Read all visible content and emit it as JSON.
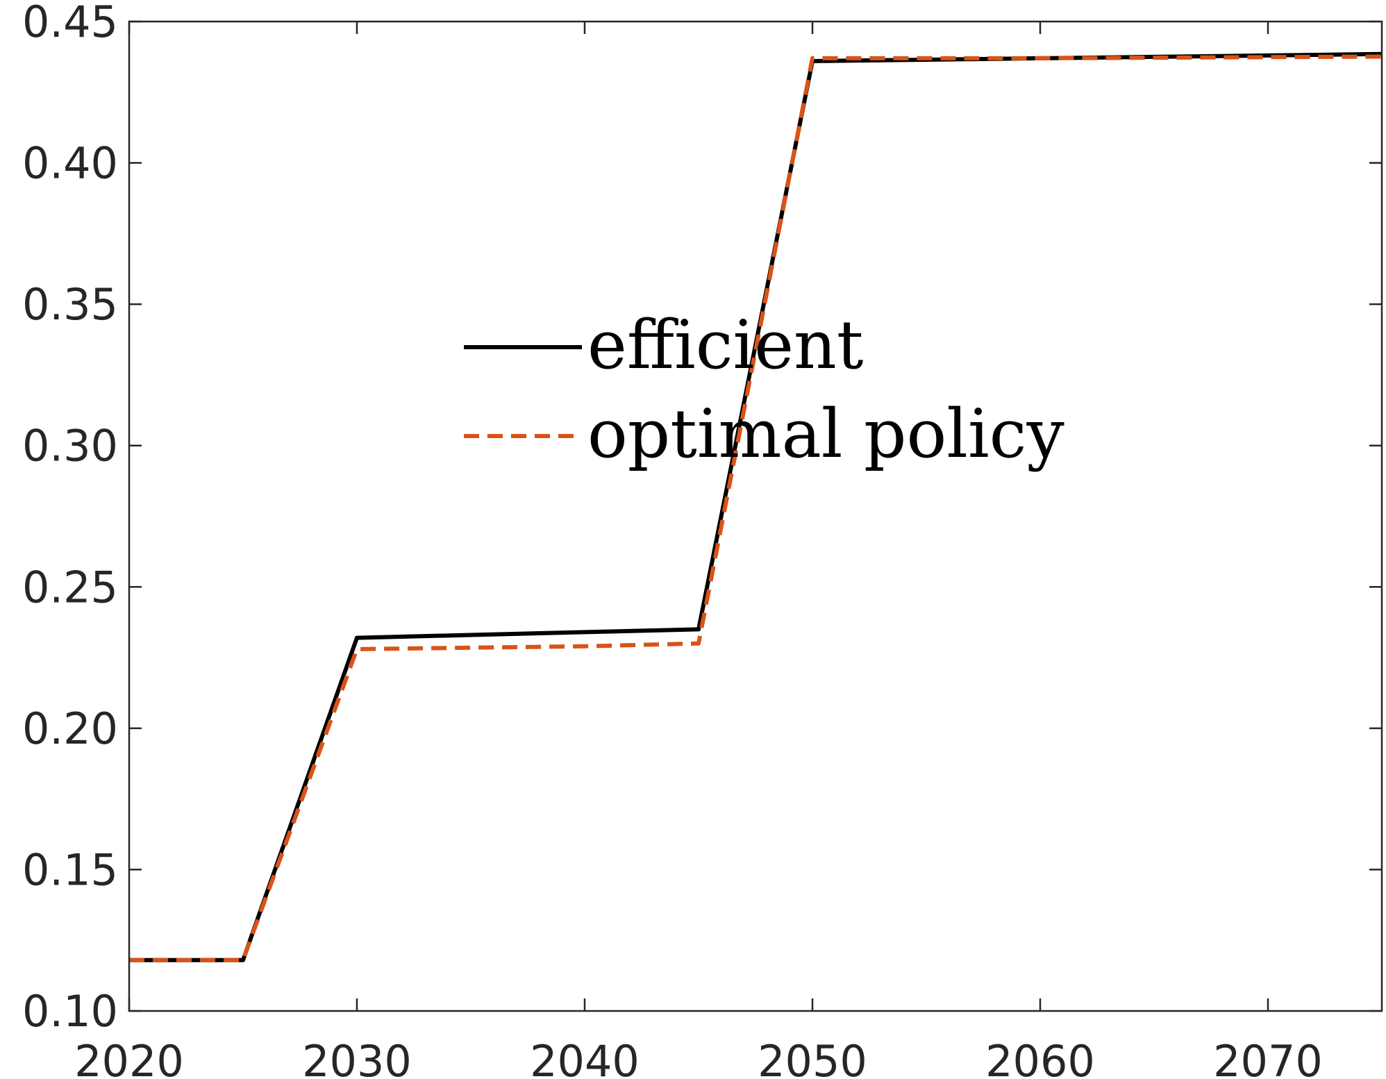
{
  "chart_data": {
    "type": "line",
    "title": "",
    "xlabel": "",
    "ylabel": "",
    "xlim": [
      2020,
      2075
    ],
    "ylim": [
      0.1,
      0.45
    ],
    "xticks": [
      2020,
      2030,
      2040,
      2050,
      2060,
      2070
    ],
    "xtick_labels": [
      "2020",
      "2030",
      "2040",
      "2050",
      "2060",
      "2070"
    ],
    "yticks": [
      0.1,
      0.15,
      0.2,
      0.25,
      0.3,
      0.35,
      0.4,
      0.45
    ],
    "ytick_labels": [
      "0.10",
      "0.15",
      "0.20",
      "0.25",
      "0.30",
      "0.35",
      "0.40",
      "0.45"
    ],
    "grid": false,
    "legend_position": "center",
    "series": [
      {
        "name": "efficient",
        "color": "#000000",
        "line_style": "solid",
        "x": [
          2020,
          2025,
          2030,
          2035,
          2040,
          2045,
          2050,
          2055,
          2060,
          2065,
          2070,
          2075
        ],
        "y": [
          0.118,
          0.118,
          0.232,
          0.233,
          0.234,
          0.235,
          0.436,
          0.4365,
          0.437,
          0.4375,
          0.438,
          0.4385
        ]
      },
      {
        "name": "optimal policy",
        "color": "#D95319",
        "line_style": "dashed",
        "x": [
          2020,
          2025,
          2030,
          2035,
          2040,
          2045,
          2050,
          2055,
          2060,
          2065,
          2070,
          2075
        ],
        "y": [
          0.118,
          0.118,
          0.228,
          0.2285,
          0.229,
          0.23,
          0.437,
          0.437,
          0.437,
          0.4372,
          0.4374,
          0.4376
        ]
      }
    ]
  }
}
